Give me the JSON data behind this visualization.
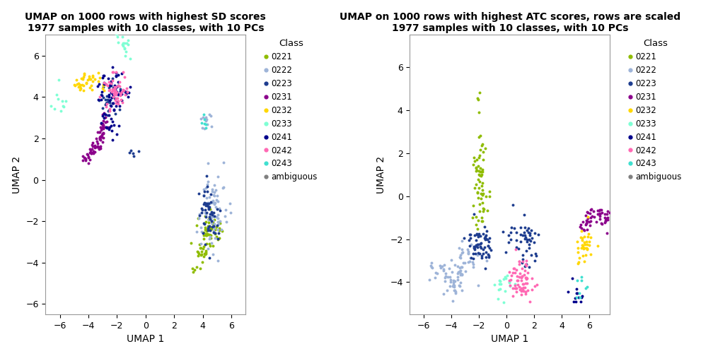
{
  "title1": "UMAP on 1000 rows with highest SD scores\n1977 samples with 10 classes, with 10 PCs",
  "title2": "UMAP on 1000 rows with highest ATC scores, rows are scaled\n1977 samples with 10 classes, with 10 PCs",
  "xlabel": "UMAP 1",
  "ylabel": "UMAP 2",
  "classes": [
    "0221",
    "0222",
    "0223",
    "0231",
    "0232",
    "0233",
    "0241",
    "0242",
    "0243",
    "ambiguous"
  ],
  "colors": [
    "#8fbc00",
    "#9eb4d8",
    "#1e3d8f",
    "#8b008b",
    "#ffd700",
    "#7fffd4",
    "#00008b",
    "#ff69b4",
    "#40e0d0",
    "#808080"
  ],
  "xlim1": [
    -7,
    7
  ],
  "ylim1": [
    -6.5,
    7
  ],
  "xlim2": [
    -7,
    7.5
  ],
  "ylim2": [
    -5.5,
    7.5
  ],
  "xticks1": [
    -6,
    -4,
    -2,
    0,
    2,
    4,
    6
  ],
  "yticks1": [
    -6,
    -4,
    -2,
    0,
    2,
    4,
    6
  ],
  "xticks2": [
    -6,
    -4,
    -2,
    0,
    2,
    4,
    6
  ],
  "yticks2": [
    -4,
    -2,
    0,
    2,
    4,
    6
  ],
  "background_color": "#ffffff",
  "panel_background": "#ffffff"
}
